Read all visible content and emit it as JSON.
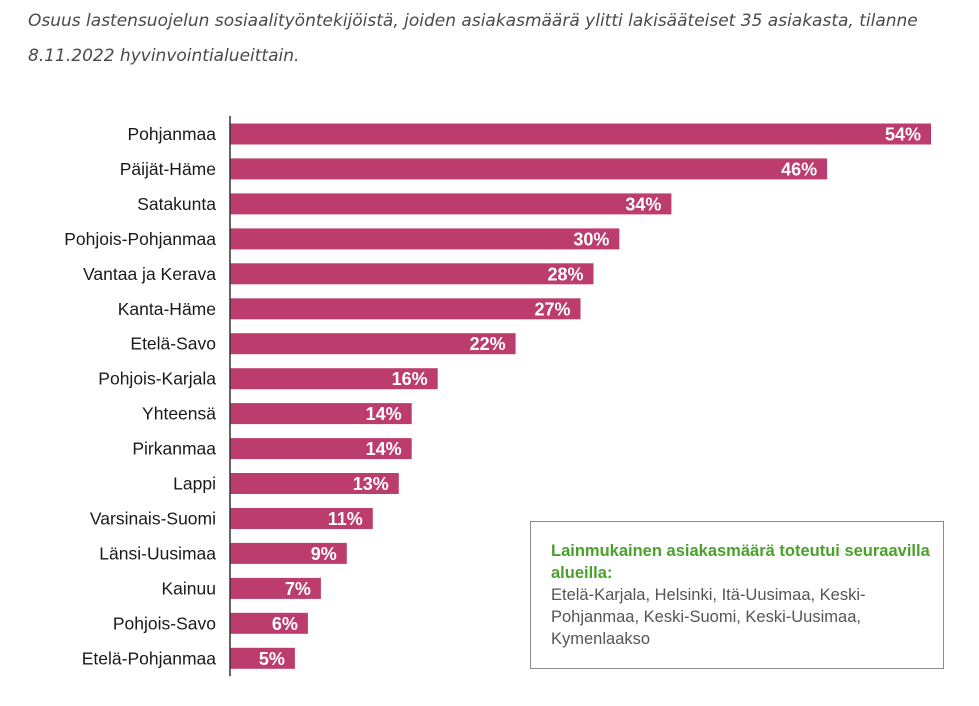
{
  "caption": "Osuus lastensuojelun sosiaalityöntekijöistä, joiden asiakasmäärä ylitti lakisääteiset 35 asiakasta, tilanne 8.11.2022 hyvinvointialueittain.",
  "colors": {
    "bar": "#bd3c6e",
    "axis": "#333333",
    "note_title": "#4aa12a"
  },
  "chart_data": {
    "type": "bar",
    "orientation": "horizontal",
    "categories": [
      "Pohjanmaa",
      "Päijät-Häme",
      "Satakunta",
      "Pohjois-Pohjanmaa",
      "Vantaa ja Kerava",
      "Kanta-Häme",
      "Etelä-Savo",
      "Pohjois-Karjala",
      "Yhteensä",
      "Pirkanmaa",
      "Lappi",
      "Varsinais-Suomi",
      "Länsi-Uusimaa",
      "Kainuu",
      "Pohjois-Savo",
      "Etelä-Pohjanmaa"
    ],
    "values": [
      54,
      46,
      34,
      30,
      28,
      27,
      22,
      16,
      14,
      14,
      13,
      11,
      9,
      7,
      6,
      5
    ],
    "value_labels": [
      "54%",
      "46%",
      "34%",
      "30%",
      "28%",
      "27%",
      "22%",
      "16%",
      "14%",
      "14%",
      "13%",
      "11%",
      "9%",
      "7%",
      "6%",
      "5%"
    ],
    "xlim": [
      0,
      54
    ],
    "grid": false,
    "legend": "none"
  },
  "note": {
    "title": "Lainmukainen asiakasmäärä toteutui seuraavilla alueilla:",
    "body": "Etelä-Karjala, Helsinki, Itä-Uusimaa, Keski-Pohjanmaa, Keski-Suomi, Keski-Uusimaa, Kymenlaakso"
  }
}
